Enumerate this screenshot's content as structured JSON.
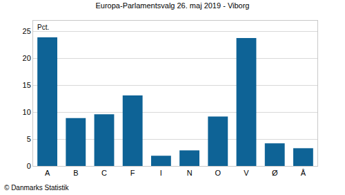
{
  "chart_data": {
    "type": "bar",
    "title": "Europa-Parlamentsvalg 26. maj 2019 - Viborg",
    "y_label": "Pct.",
    "source": "© Danmarks Statistik",
    "categories": [
      "A",
      "B",
      "C",
      "F",
      "I",
      "N",
      "O",
      "V",
      "Ø",
      "Å"
    ],
    "values": [
      23.9,
      8.9,
      9.6,
      13.1,
      1.9,
      2.9,
      9.2,
      23.8,
      4.2,
      3.3
    ],
    "color": "#0e6396",
    "ylim": [
      0,
      27
    ],
    "yticks": [
      0,
      5,
      10,
      15,
      20,
      25
    ],
    "grid": true
  }
}
